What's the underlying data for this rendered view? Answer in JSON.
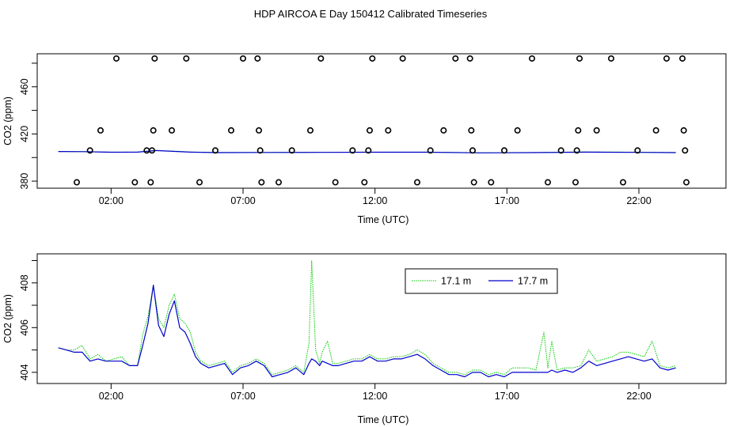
{
  "figure": {
    "title": "HDP AIRCOA E  Day 150412  Calibrated Timeseries"
  },
  "colors": {
    "green": "#00cc00",
    "blue": "#0000cc",
    "axis": "#000000"
  },
  "chart_data": [
    {
      "type": "line",
      "title": "HDP AIRCOA E  Day 150412  Calibrated Timeseries",
      "xlabel": "Time (UTC)",
      "ylabel": "CO2 (ppm)",
      "xlim": [
        -0.8,
        25.3
      ],
      "ylim": [
        374,
        488
      ],
      "x_ticks": [
        2,
        7,
        12,
        17,
        22
      ],
      "x_tick_labels": [
        "02:00",
        "07:00",
        "12:00",
        "17:00",
        "22:00"
      ],
      "y_ticks": [
        380,
        420,
        460
      ],
      "y_tick_labels": [
        "380",
        "420",
        "460"
      ],
      "grid": false,
      "legend": "none",
      "flag_points": {
        "type": "scatter",
        "levels": [
          379,
          406,
          423,
          484
        ],
        "points": [
          {
            "x": 0.7,
            "y": 379
          },
          {
            "x": 1.2,
            "y": 406
          },
          {
            "x": 1.6,
            "y": 423
          },
          {
            "x": 2.2,
            "y": 484
          },
          {
            "x": 2.9,
            "y": 379
          },
          {
            "x": 3.35,
            "y": 406
          },
          {
            "x": 3.5,
            "y": 379
          },
          {
            "x": 3.55,
            "y": 406
          },
          {
            "x": 3.6,
            "y": 423
          },
          {
            "x": 3.65,
            "y": 484
          },
          {
            "x": 4.3,
            "y": 423
          },
          {
            "x": 4.85,
            "y": 484
          },
          {
            "x": 5.35,
            "y": 379
          },
          {
            "x": 5.95,
            "y": 406
          },
          {
            "x": 6.55,
            "y": 423
          },
          {
            "x": 7.0,
            "y": 484
          },
          {
            "x": 7.55,
            "y": 484
          },
          {
            "x": 7.6,
            "y": 423
          },
          {
            "x": 7.65,
            "y": 406
          },
          {
            "x": 7.7,
            "y": 379
          },
          {
            "x": 8.35,
            "y": 379
          },
          {
            "x": 8.85,
            "y": 406
          },
          {
            "x": 9.55,
            "y": 423
          },
          {
            "x": 9.95,
            "y": 484
          },
          {
            "x": 10.5,
            "y": 379
          },
          {
            "x": 11.15,
            "y": 406
          },
          {
            "x": 11.6,
            "y": 379
          },
          {
            "x": 11.75,
            "y": 406
          },
          {
            "x": 11.8,
            "y": 423
          },
          {
            "x": 11.9,
            "y": 484
          },
          {
            "x": 12.5,
            "y": 423
          },
          {
            "x": 13.05,
            "y": 484
          },
          {
            "x": 13.6,
            "y": 379
          },
          {
            "x": 14.1,
            "y": 406
          },
          {
            "x": 14.6,
            "y": 423
          },
          {
            "x": 15.05,
            "y": 484
          },
          {
            "x": 15.6,
            "y": 484
          },
          {
            "x": 15.65,
            "y": 423
          },
          {
            "x": 15.7,
            "y": 406
          },
          {
            "x": 15.75,
            "y": 379
          },
          {
            "x": 16.4,
            "y": 379
          },
          {
            "x": 16.9,
            "y": 406
          },
          {
            "x": 17.4,
            "y": 423
          },
          {
            "x": 17.95,
            "y": 484
          },
          {
            "x": 18.55,
            "y": 379
          },
          {
            "x": 19.05,
            "y": 406
          },
          {
            "x": 19.6,
            "y": 379
          },
          {
            "x": 19.65,
            "y": 406
          },
          {
            "x": 19.7,
            "y": 423
          },
          {
            "x": 19.75,
            "y": 484
          },
          {
            "x": 20.4,
            "y": 423
          },
          {
            "x": 20.95,
            "y": 484
          },
          {
            "x": 21.4,
            "y": 379
          },
          {
            "x": 21.95,
            "y": 406
          },
          {
            "x": 22.65,
            "y": 423
          },
          {
            "x": 23.05,
            "y": 484
          },
          {
            "x": 23.65,
            "y": 484
          },
          {
            "x": 23.7,
            "y": 423
          },
          {
            "x": 23.75,
            "y": 406
          },
          {
            "x": 23.8,
            "y": 379
          }
        ]
      },
      "x": [
        0,
        1,
        2,
        3,
        3.7,
        4.5,
        5,
        6,
        8,
        10,
        12,
        14,
        16,
        18,
        20,
        22,
        23.4
      ],
      "series": [
        {
          "name": "17.1 m",
          "values": [
            405.1,
            405.0,
            404.6,
            404.7,
            406.0,
            405.3,
            404.8,
            404.3,
            404.4,
            404.5,
            404.6,
            404.6,
            404.1,
            404.3,
            404.8,
            404.6,
            404.3
          ]
        },
        {
          "name": "17.7 m",
          "values": [
            405.1,
            405.0,
            404.5,
            404.6,
            405.9,
            405.1,
            404.6,
            404.2,
            404.3,
            404.4,
            404.5,
            404.5,
            404.0,
            404.2,
            404.6,
            404.4,
            404.2
          ]
        }
      ]
    },
    {
      "type": "line",
      "xlabel": "Time (UTC)",
      "ylabel": "CO2 (ppm)",
      "xlim": [
        -0.8,
        25.3
      ],
      "ylim": [
        403.5,
        409.3
      ],
      "x_ticks": [
        2,
        7,
        12,
        17,
        22
      ],
      "x_tick_labels": [
        "02:00",
        "07:00",
        "12:00",
        "17:00",
        "22:00"
      ],
      "y_ticks": [
        404,
        406,
        408
      ],
      "y_tick_labels": [
        "404",
        "406",
        "408"
      ],
      "grid": false,
      "legend": "top-center",
      "x": [
        0,
        0.3,
        0.6,
        0.9,
        1.2,
        1.5,
        1.8,
        2.1,
        2.4,
        2.7,
        3.0,
        3.2,
        3.4,
        3.6,
        3.8,
        4.0,
        4.2,
        4.4,
        4.6,
        4.8,
        5.0,
        5.2,
        5.4,
        5.7,
        6.0,
        6.3,
        6.6,
        6.9,
        7.2,
        7.5,
        7.8,
        8.1,
        8.4,
        8.7,
        9.0,
        9.3,
        9.5,
        9.6,
        9.75,
        9.9,
        10.0,
        10.2,
        10.4,
        10.6,
        10.9,
        11.2,
        11.5,
        11.8,
        12.1,
        12.4,
        12.7,
        13.0,
        13.3,
        13.6,
        13.9,
        14.2,
        14.5,
        14.8,
        15.1,
        15.4,
        15.7,
        16.0,
        16.3,
        16.6,
        16.9,
        17.2,
        17.5,
        17.8,
        18.1,
        18.4,
        18.55,
        18.7,
        18.9,
        19.2,
        19.5,
        19.8,
        20.1,
        20.4,
        20.7,
        21.0,
        21.3,
        21.6,
        21.9,
        22.2,
        22.5,
        22.8,
        23.1,
        23.4
      ],
      "series": [
        {
          "name": "17.1 m",
          "values": [
            405.1,
            405.0,
            405.0,
            405.2,
            404.6,
            404.8,
            404.5,
            404.6,
            404.7,
            404.3,
            404.3,
            405.7,
            406.5,
            407.9,
            406.4,
            406.0,
            407.0,
            407.5,
            406.4,
            406.2,
            405.8,
            404.9,
            404.5,
            404.3,
            404.4,
            404.5,
            404.0,
            404.3,
            404.4,
            404.6,
            404.4,
            403.9,
            404.0,
            404.1,
            404.3,
            404.0,
            405.3,
            409.0,
            405.0,
            404.4,
            404.9,
            405.4,
            404.4,
            404.4,
            404.5,
            404.6,
            404.6,
            404.8,
            404.6,
            404.6,
            404.7,
            404.7,
            404.8,
            405.0,
            404.8,
            404.4,
            404.2,
            404.0,
            404.0,
            403.9,
            404.1,
            404.1,
            403.9,
            404.0,
            403.9,
            404.2,
            404.2,
            404.2,
            404.1,
            405.8,
            404.2,
            405.4,
            404.1,
            404.2,
            404.2,
            404.3,
            405.0,
            404.5,
            404.6,
            404.7,
            404.9,
            404.9,
            404.8,
            404.7,
            405.4,
            404.3,
            404.2,
            404.3
          ]
        },
        {
          "name": "17.7 m",
          "values": [
            405.1,
            405.0,
            404.9,
            404.9,
            404.5,
            404.6,
            404.5,
            404.5,
            404.5,
            404.3,
            404.3,
            405.2,
            406.2,
            407.9,
            406.1,
            405.6,
            406.6,
            407.2,
            406.0,
            405.8,
            405.3,
            404.7,
            404.4,
            404.2,
            404.3,
            404.4,
            403.9,
            404.2,
            404.3,
            404.5,
            404.3,
            403.8,
            403.9,
            404.0,
            404.2,
            403.9,
            404.4,
            404.6,
            404.5,
            404.3,
            404.5,
            404.4,
            404.3,
            404.3,
            404.4,
            404.5,
            404.5,
            404.7,
            404.5,
            404.5,
            404.6,
            404.6,
            404.7,
            404.8,
            404.6,
            404.3,
            404.1,
            403.9,
            403.9,
            403.8,
            404.0,
            404.0,
            403.8,
            403.9,
            403.8,
            404.0,
            404.0,
            404.0,
            404.0,
            404.0,
            404.0,
            404.1,
            404.0,
            404.1,
            404.0,
            404.2,
            404.5,
            404.3,
            404.4,
            404.5,
            404.6,
            404.7,
            404.6,
            404.5,
            404.6,
            404.2,
            404.1,
            404.2
          ]
        }
      ]
    }
  ]
}
